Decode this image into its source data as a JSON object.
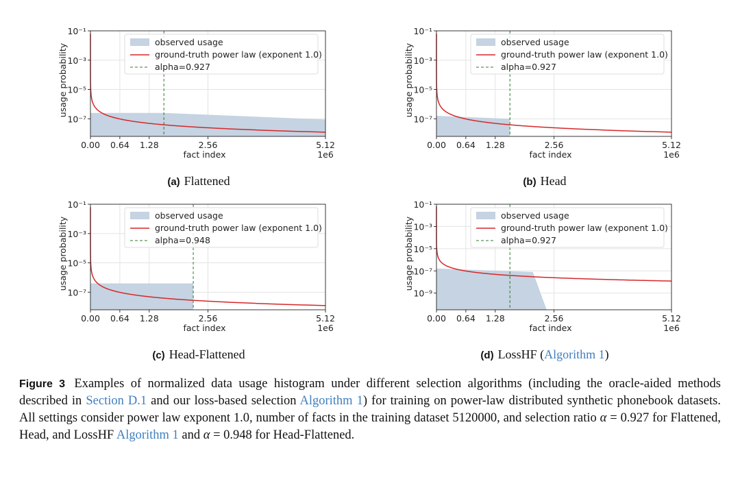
{
  "colors": {
    "observed_fill": "#c5d3e2",
    "power_law": "#d62728",
    "alpha_line": "#2c7a2c",
    "link": "#3f7fbf",
    "grid": "#e3e3e3"
  },
  "shared": {
    "xlabel": "fact index",
    "ylabel": "usage probability",
    "x_tick_labels": [
      "0.00",
      "0.64",
      "1.28",
      "2.56",
      "5.12"
    ],
    "x_offset_label": "1e6",
    "legend_observed": "observed usage",
    "legend_power": "ground-truth power law (exponent 1.0)"
  },
  "chart_data": [
    {
      "type": "area",
      "panel_label": "(a)",
      "panel_title": "Flattened",
      "xlabel": "fact index",
      "ylabel": "usage probability",
      "xlim": [
        0,
        5120000
      ],
      "x_ticks": [
        0,
        640000,
        1280000,
        2560000,
        5120000
      ],
      "ylim_log10": [
        -8.2,
        -1
      ],
      "y_ticks_log10": [
        -1,
        -3,
        -5,
        -7
      ],
      "y_tick_labels": [
        "10⁻¹",
        "10⁻³",
        "10⁻⁵",
        "10⁻⁷"
      ],
      "observed_usage": {
        "x": [
          0,
          80000,
          1600000,
          5120000
        ],
        "log10_y": [
          -6.6,
          -6.6,
          -6.6,
          -7.05
        ]
      },
      "power_law_exponent": 1.0,
      "alpha": 0.927,
      "alpha_label": "alpha=0.927",
      "alpha_x": 1600000,
      "legend": [
        "observed usage",
        "ground-truth power law (exponent 1.0)",
        "alpha=0.927"
      ]
    },
    {
      "type": "area",
      "panel_label": "(b)",
      "panel_title": "Head",
      "xlabel": "fact index",
      "ylabel": "usage probability",
      "xlim": [
        0,
        5120000
      ],
      "x_ticks": [
        0,
        640000,
        1280000,
        2560000,
        5120000
      ],
      "ylim_log10": [
        -8.2,
        -1
      ],
      "y_ticks_log10": [
        -1,
        -3,
        -5,
        -7
      ],
      "y_tick_labels": [
        "10⁻¹",
        "10⁻³",
        "10⁻⁵",
        "10⁻⁷"
      ],
      "observed_usage": {
        "x": [
          0,
          1600000,
          1600000
        ],
        "log10_y": [
          -6.8,
          -7.0,
          -8.2
        ]
      },
      "power_law_exponent": 1.0,
      "alpha": 0.927,
      "alpha_label": "alpha=0.927",
      "alpha_x": 1600000,
      "legend": [
        "observed usage",
        "ground-truth power law (exponent 1.0)",
        "alpha=0.927"
      ]
    },
    {
      "type": "area",
      "panel_label": "(c)",
      "panel_title": "Head-Flattened",
      "xlabel": "fact index",
      "ylabel": "usage probability",
      "xlim": [
        0,
        5120000
      ],
      "x_ticks": [
        0,
        640000,
        1280000,
        2560000,
        5120000
      ],
      "ylim_log10": [
        -8.2,
        -1
      ],
      "y_ticks_log10": [
        -1,
        -3,
        -5,
        -7
      ],
      "y_tick_labels": [
        "10⁻¹",
        "10⁻³",
        "10⁻⁵",
        "10⁻⁷"
      ],
      "observed_usage": {
        "x": [
          0,
          2240000,
          2240000
        ],
        "log10_y": [
          -6.4,
          -6.4,
          -8.2
        ]
      },
      "power_law_exponent": 1.0,
      "alpha": 0.948,
      "alpha_label": "alpha=0.948",
      "alpha_x": 2240000,
      "legend": [
        "observed usage",
        "ground-truth power law (exponent 1.0)",
        "alpha=0.948"
      ]
    },
    {
      "type": "area",
      "panel_label": "(d)",
      "panel_title": "LossHF",
      "panel_title_link": "Algorithm 1",
      "xlabel": "fact index",
      "ylabel": "usage probability",
      "xlim": [
        0,
        5120000
      ],
      "x_ticks": [
        0,
        640000,
        1280000,
        2560000,
        5120000
      ],
      "ylim_log10": [
        -10.5,
        -1
      ],
      "y_ticks_log10": [
        -1,
        -3,
        -5,
        -7,
        -9
      ],
      "y_tick_labels": [
        "10⁻¹",
        "10⁻³",
        "10⁻⁵",
        "10⁻⁷",
        "10⁻⁹"
      ],
      "observed_usage": {
        "x": [
          0,
          80000,
          2100000,
          2400000
        ],
        "log10_y": [
          -6.8,
          -6.8,
          -7.1,
          -10.5
        ]
      },
      "power_law_exponent": 1.0,
      "alpha": 0.927,
      "alpha_label": "alpha=0.927",
      "alpha_x": 1600000,
      "legend": [
        "observed usage",
        "ground-truth power law (exponent 1.0)",
        "alpha=0.927"
      ]
    }
  ],
  "caption": {
    "label": "Figure 3",
    "t1": "Examples of normalized data usage histogram under different selection algorithms (including the oracle-aided methods described in ",
    "link1": "Section D.1",
    "t2": " and our loss-based selection ",
    "link2": "Algorithm 1",
    "t3": ") for training on power-law distributed synthetic phonebook datasets. All settings consider power law exponent 1.0, number of facts in the training dataset 5120000, and selection ratio ",
    "alpha_sym1": "α",
    "t4": " = 0.927 for Flattened, Head, and LossHF ",
    "link3": "Algorithm 1",
    "t5": " and ",
    "alpha_sym2": "α",
    "t6": " = 0.948 for Head-Flattened."
  }
}
